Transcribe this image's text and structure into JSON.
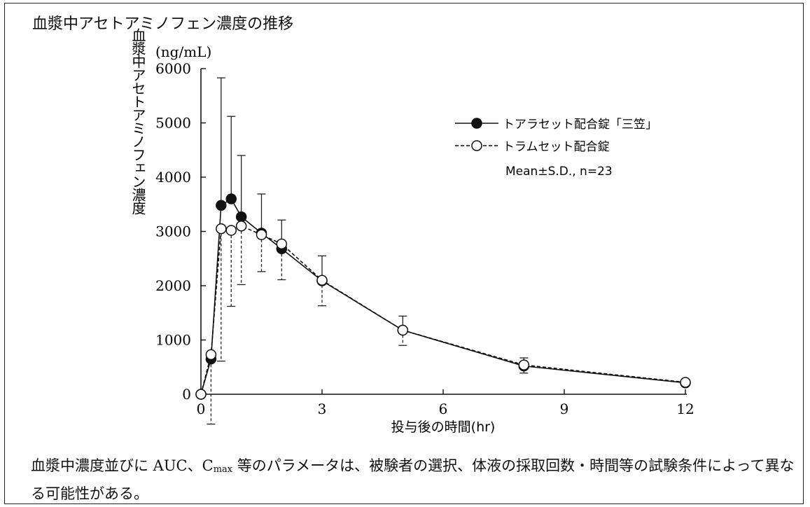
{
  "title": "血漿中アセトアミノフェン濃度の推移",
  "note": {
    "pre": "血漿中濃度並びに AUC、C",
    "sub": "max",
    "post": " 等のパラメータは、被験者の選択、体液の採取回数・時間等の試験条件によって異なる可能性がある。"
  },
  "chart_data": {
    "type": "line",
    "unit_label": "(ng/mL)",
    "ylabel": "血漿中アセトアミノフェン濃度",
    "xlabel": "投与後の時間(hr)",
    "xlim": [
      0,
      12
    ],
    "ylim": [
      0,
      6000
    ],
    "xticks": [
      0,
      3,
      6,
      9,
      12
    ],
    "yticks": [
      0,
      1000,
      2000,
      3000,
      4000,
      5000,
      6000
    ],
    "grid": false,
    "legend_position": "top-right",
    "annotation": "Mean±S.D., n=23",
    "series": [
      {
        "name": "トアラセット配合錠「三笠」",
        "marker": "filled-circle",
        "line": "solid",
        "color": "#111111",
        "x": [
          0,
          0.25,
          0.5,
          0.75,
          1,
          1.5,
          2,
          3,
          5,
          8,
          12
        ],
        "y": [
          0,
          650,
          3480,
          3600,
          3270,
          2970,
          2680,
          2090,
          1180,
          520,
          210
        ],
        "err": [
          0,
          0,
          2350,
          1520,
          1130,
          720,
          530,
          460,
          260,
          150,
          60
        ]
      },
      {
        "name": "トラムセット配合錠",
        "marker": "open-circle",
        "line": "dashed",
        "color": "#111111",
        "x": [
          0,
          0.25,
          0.5,
          0.75,
          1,
          1.5,
          2,
          3,
          5,
          8,
          12
        ],
        "y": [
          0,
          730,
          3050,
          3020,
          3100,
          2940,
          2770,
          2100,
          1180,
          540,
          220
        ],
        "err": [
          0,
          1280,
          2440,
          1400,
          1080,
          680,
          660,
          470,
          280,
          150,
          60
        ]
      }
    ]
  }
}
